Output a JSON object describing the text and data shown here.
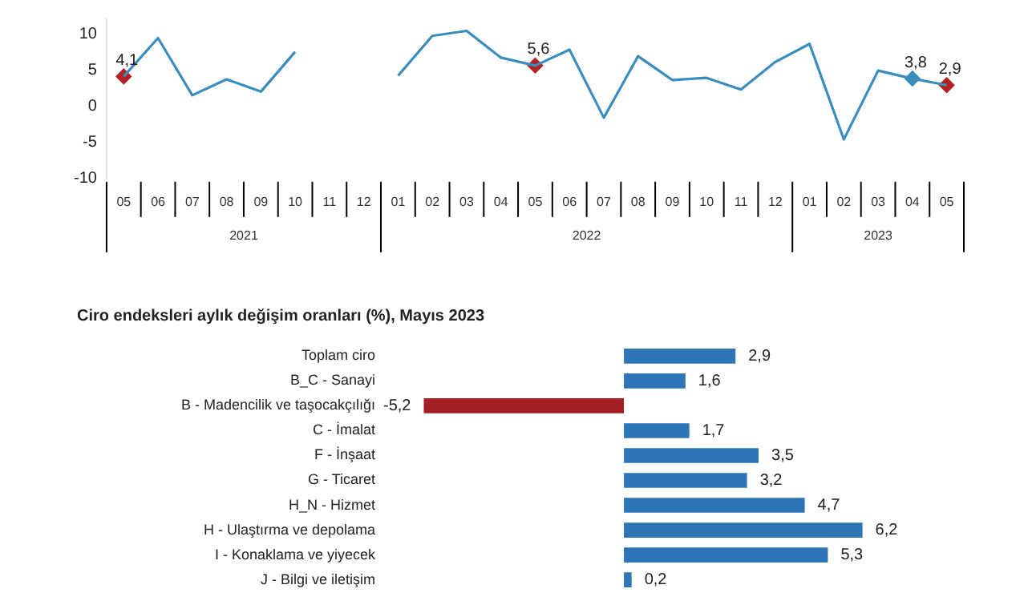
{
  "chart_data": [
    {
      "type": "line",
      "categories": [
        "05",
        "06",
        "07",
        "08",
        "09",
        "10",
        "11",
        "12",
        "01",
        "02",
        "03",
        "04",
        "05",
        "06",
        "07",
        "08",
        "09",
        "10",
        "11",
        "12",
        "01",
        "02",
        "03",
        "04",
        "05"
      ],
      "annotations": [
        "2021",
        "2022",
        "2023"
      ],
      "series": [
        {
          "color": "#3b8dbd",
          "values": [
            4.1,
            9.4,
            1.5,
            3.7,
            2.0,
            7.5,
            null,
            null,
            4.2,
            9.7,
            10.4,
            6.7,
            5.6,
            7.8,
            -1.6,
            6.9,
            3.6,
            3.9,
            2.3,
            6.1,
            8.6,
            -4.6,
            4.9,
            3.8,
            2.9
          ]
        },
        {
          "type": "scatter",
          "marker": "diamond",
          "values": [
            4.1,
            null,
            null,
            null,
            null,
            null,
            null,
            null,
            null,
            null,
            null,
            null,
            5.6,
            null,
            null,
            null,
            null,
            null,
            null,
            null,
            null,
            null,
            null,
            3.8,
            2.9
          ],
          "value_labels": [
            "4,1",
            null,
            null,
            null,
            null,
            null,
            null,
            null,
            null,
            null,
            null,
            null,
            "5,6",
            null,
            null,
            null,
            null,
            null,
            null,
            null,
            null,
            null,
            null,
            "3,8",
            "2,9"
          ],
          "colors": [
            "#b22222",
            null,
            null,
            null,
            null,
            null,
            null,
            null,
            null,
            null,
            null,
            null,
            "#b22222",
            null,
            null,
            null,
            null,
            null,
            null,
            null,
            null,
            null,
            null,
            "#3b8dbd",
            "#b22222"
          ]
        }
      ],
      "ylim": [
        -10,
        12
      ],
      "yticks": [
        -10,
        -5,
        0,
        5,
        10
      ],
      "marker": "none",
      "grid": false,
      "legend": false
    },
    {
      "type": "bar",
      "orientation": "horizontal",
      "title": "Ciro endeksleri aylık değişim oranları (%), Mayıs 2023",
      "categories": [
        "Toplam ciro",
        "B_C - Sanayi",
        "B - Madencilik ve taşocakçılığı",
        "C - İmalat",
        "F - İnşaat",
        "G - Ticaret",
        "H_N - Hizmet",
        "H - Ulaştırma ve depolama",
        "I - Konaklama ve yiyecek",
        "J - Bilgi ve iletişim"
      ],
      "values": [
        2.9,
        1.6,
        -5.2,
        1.7,
        3.5,
        3.2,
        4.7,
        6.2,
        5.3,
        0.2
      ],
      "colors": [
        "#2e75b6",
        "#2e75b6",
        "#a31f24",
        "#2e75b6",
        "#2e75b6",
        "#2e75b6",
        "#2e75b6",
        "#2e75b6",
        "#2e75b6",
        "#2e75b6"
      ],
      "value_labels": [
        "2,9",
        "1,6",
        "-5,2",
        "1,7",
        "3,5",
        "3,2",
        "4,7",
        "6,2",
        "5,3",
        "0,2"
      ],
      "tick_labels": "y",
      "grid": false,
      "legend": false
    }
  ]
}
